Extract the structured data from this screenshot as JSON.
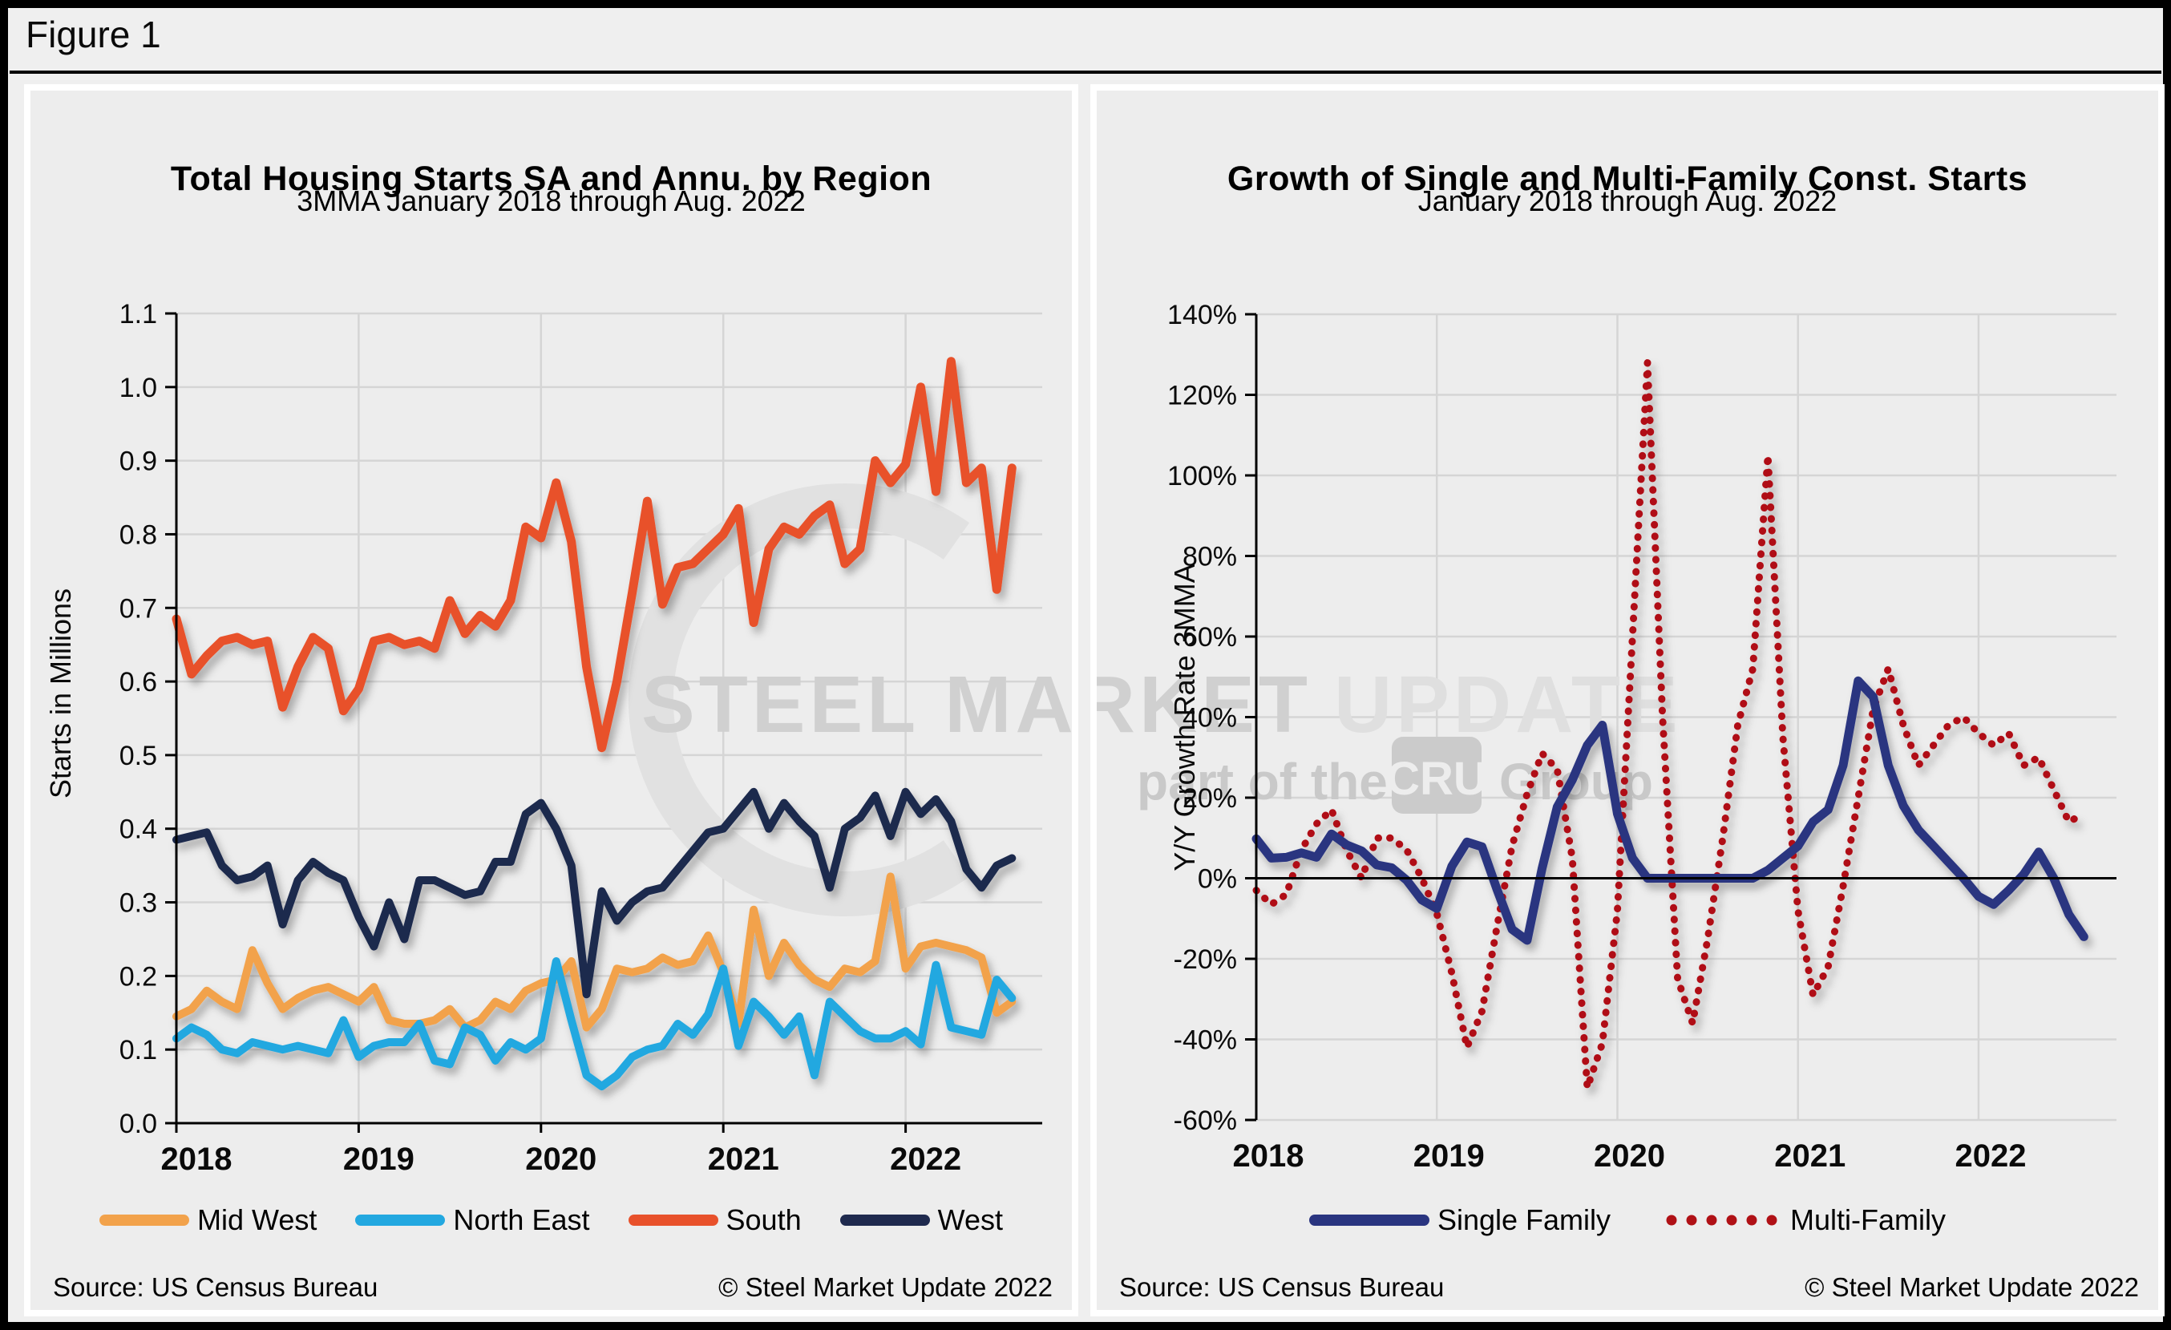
{
  "figure": {
    "label": "Figure 1"
  },
  "watermark": {
    "line1_strong": "STEEL MARKET",
    "line1_light": "UPDATE",
    "line2_pre": "part of the",
    "line2_badge": "CRU",
    "line2_post": "Group"
  },
  "panels": [
    {
      "title": "Total Housing Starts SA and Annu. by Region",
      "subtitle": "3MMA January 2018 through Aug. 2022",
      "ylabel": "Starts in Millions",
      "source_left": "Source: US Census Bureau",
      "source_right": "© Steel Market Update 2022",
      "legend": [
        {
          "label": "Mid West",
          "color": "#F2A24B",
          "dotted": false
        },
        {
          "label": "North East",
          "color": "#23A8E0",
          "dotted": false
        },
        {
          "label": "South",
          "color": "#E8512B",
          "dotted": false
        },
        {
          "label": "West",
          "color": "#1F2A4E",
          "dotted": false
        }
      ]
    },
    {
      "title": "Growth of Single and Multi-Family Const. Starts",
      "subtitle": "January 2018 through Aug. 2022",
      "ylabel": "Y/Y Growth Rate 3MMA",
      "source_left": "Source: US Census Bureau",
      "source_right": "© Steel Market Update 2022",
      "legend": [
        {
          "label": "Single Family",
          "color": "#2A3580",
          "dotted": false
        },
        {
          "label": "Multi-Family",
          "color": "#B01116",
          "dotted": true
        }
      ]
    }
  ],
  "chart_data": [
    {
      "type": "line",
      "title": "Total Housing Starts SA and Annu. by Region",
      "subtitle": "3MMA January 2018 through Aug. 2022",
      "xlabel": "",
      "ylabel": "Starts in Millions",
      "x_start": "2018-01",
      "x_end": "2022-08",
      "x_frequency": "monthly",
      "ylim": [
        0.0,
        1.1
      ],
      "ytick_labels": [
        "0.0",
        "0.1",
        "0.2",
        "0.3",
        "0.4",
        "0.5",
        "0.6",
        "0.7",
        "0.8",
        "0.9",
        "1.0",
        "1.1"
      ],
      "xtick_labels": [
        "2018",
        "2019",
        "2020",
        "2021",
        "2022"
      ],
      "grid": true,
      "legend_position": "bottom",
      "x_axis_line": true,
      "zero_line": false,
      "series": [
        {
          "name": "Mid West",
          "color": "#F2A24B",
          "dotted": false,
          "width": 10,
          "values": [
            0.145,
            0.155,
            0.18,
            0.165,
            0.155,
            0.235,
            0.19,
            0.155,
            0.17,
            0.18,
            0.185,
            0.175,
            0.165,
            0.185,
            0.14,
            0.135,
            0.135,
            0.14,
            0.155,
            0.13,
            0.14,
            0.165,
            0.155,
            0.18,
            0.19,
            0.195,
            0.22,
            0.13,
            0.155,
            0.21,
            0.205,
            0.21,
            0.225,
            0.215,
            0.22,
            0.255,
            0.205,
            0.135,
            0.29,
            0.2,
            0.245,
            0.215,
            0.195,
            0.185,
            0.21,
            0.205,
            0.22,
            0.335,
            0.21,
            0.24,
            0.245,
            0.24,
            0.235,
            0.225,
            0.15,
            0.165
          ]
        },
        {
          "name": "North East",
          "color": "#23A8E0",
          "dotted": false,
          "width": 10,
          "values": [
            0.115,
            0.13,
            0.12,
            0.1,
            0.095,
            0.11,
            0.105,
            0.1,
            0.105,
            0.1,
            0.095,
            0.14,
            0.09,
            0.105,
            0.11,
            0.11,
            0.135,
            0.085,
            0.08,
            0.13,
            0.12,
            0.085,
            0.11,
            0.1,
            0.115,
            0.22,
            0.14,
            0.065,
            0.05,
            0.065,
            0.09,
            0.1,
            0.105,
            0.135,
            0.12,
            0.148,
            0.21,
            0.105,
            0.165,
            0.145,
            0.12,
            0.145,
            0.065,
            0.165,
            0.145,
            0.125,
            0.115,
            0.115,
            0.125,
            0.107,
            0.215,
            0.13,
            0.125,
            0.12,
            0.195,
            0.17
          ]
        },
        {
          "name": "South",
          "color": "#E8512B",
          "dotted": false,
          "width": 11,
          "values": [
            0.685,
            0.61,
            0.635,
            0.655,
            0.66,
            0.65,
            0.655,
            0.565,
            0.62,
            0.66,
            0.645,
            0.56,
            0.59,
            0.655,
            0.66,
            0.65,
            0.655,
            0.645,
            0.71,
            0.665,
            0.69,
            0.675,
            0.71,
            0.81,
            0.795,
            0.87,
            0.79,
            0.62,
            0.51,
            0.6,
            0.72,
            0.845,
            0.705,
            0.755,
            0.76,
            0.78,
            0.8,
            0.835,
            0.68,
            0.78,
            0.81,
            0.8,
            0.825,
            0.84,
            0.76,
            0.78,
            0.9,
            0.87,
            0.895,
            1.0,
            0.858,
            1.035,
            0.87,
            0.89,
            0.725,
            0.89
          ]
        },
        {
          "name": "West",
          "color": "#1F2A4E",
          "dotted": false,
          "width": 10,
          "values": [
            0.385,
            0.39,
            0.395,
            0.35,
            0.33,
            0.335,
            0.35,
            0.27,
            0.33,
            0.355,
            0.34,
            0.33,
            0.28,
            0.24,
            0.3,
            0.25,
            0.33,
            0.33,
            0.32,
            0.31,
            0.315,
            0.355,
            0.355,
            0.42,
            0.435,
            0.4,
            0.35,
            0.175,
            0.315,
            0.275,
            0.3,
            0.315,
            0.32,
            0.345,
            0.37,
            0.395,
            0.4,
            0.425,
            0.45,
            0.4,
            0.435,
            0.41,
            0.39,
            0.32,
            0.4,
            0.415,
            0.445,
            0.39,
            0.45,
            0.42,
            0.44,
            0.41,
            0.345,
            0.32,
            0.35,
            0.36
          ]
        }
      ]
    },
    {
      "type": "line",
      "title": "Growth of Single and Multi-Family Const. Starts",
      "subtitle": "January 2018 through Aug. 2022",
      "xlabel": "",
      "ylabel": "Y/Y Growth Rate 3MMA",
      "x_start": "2018-01",
      "x_end": "2022-08",
      "x_frequency": "monthly",
      "ylim": [
        -60,
        140
      ],
      "ytick_labels": [
        "-60%",
        "-40%",
        "-20%",
        "0%",
        "20%",
        "40%",
        "60%",
        "80%",
        "100%",
        "120%",
        "140%"
      ],
      "xtick_labels": [
        "2018",
        "2019",
        "2020",
        "2021",
        "2022"
      ],
      "grid": true,
      "legend_position": "bottom",
      "x_axis_line": false,
      "zero_line": true,
      "series": [
        {
          "name": "Multi-Family",
          "color": "#B01116",
          "dotted": true,
          "width": 9,
          "values": [
            -3,
            -6.5,
            -4,
            7,
            13.5,
            17,
            7,
            0,
            10,
            10,
            7,
            0,
            -8.7,
            -23.6,
            -42,
            -33,
            -12,
            8,
            21,
            31,
            27,
            5,
            -52,
            -41,
            -8,
            60,
            128,
            40,
            -25,
            -36,
            -15,
            10,
            38,
            52,
            105,
            35,
            -8,
            -29,
            -22,
            -2,
            20,
            42,
            52,
            38,
            28,
            33,
            38,
            40,
            36,
            33,
            36,
            28,
            30,
            22,
            14,
            16
          ]
        },
        {
          "name": "Single Family",
          "color": "#2A3580",
          "dotted": false,
          "width": 11,
          "values": [
            9.8,
            5,
            5.2,
            6.3,
            5.2,
            11,
            8.3,
            6.8,
            3.3,
            2.6,
            -0.5,
            -5.4,
            -7.5,
            3,
            9,
            7.8,
            -2.8,
            -12.7,
            -15.4,
            2.5,
            17.7,
            24.4,
            33,
            38,
            16,
            5,
            0,
            0,
            0,
            0,
            0,
            0,
            0,
            0,
            2,
            5,
            8,
            14,
            17,
            28,
            49,
            45,
            28,
            18,
            12,
            8,
            4,
            0,
            -4.5,
            -6.5,
            -3,
            1,
            6.5,
            0,
            -9,
            -14.5
          ]
        }
      ]
    }
  ]
}
